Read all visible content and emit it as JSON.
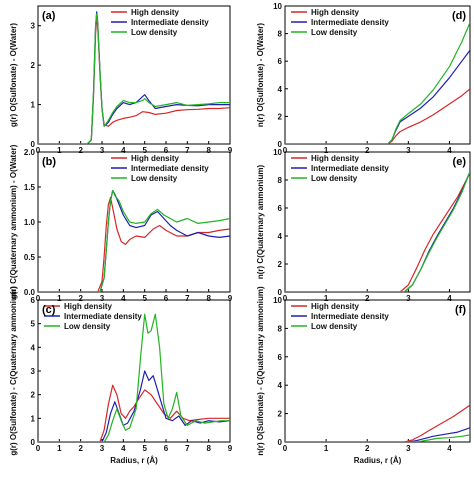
{
  "colors": {
    "high": "#d62728",
    "intermediate": "#1f1fb4",
    "low": "#22b422"
  },
  "legend": {
    "high": "High density",
    "intermediate": "Intermediate density",
    "low": "Low density"
  },
  "chart_data": [
    {
      "id": "a",
      "panel_label": "(a)",
      "type": "line",
      "ylabel": "g(r) O(Sulfonate) - O(Water)",
      "xlabel": "",
      "xlim": [
        0,
        9
      ],
      "ylim": [
        0,
        3.5
      ],
      "xticks": [
        "0",
        "1",
        "2",
        "3",
        "4",
        "5",
        "6",
        "7",
        "8",
        "9"
      ],
      "yticks": [
        "0",
        "1",
        "2",
        "3"
      ],
      "legend_position": "top-right",
      "series": [
        {
          "name": "High density",
          "key": "high",
          "x": [
            0,
            2.3,
            2.5,
            2.6,
            2.7,
            2.75,
            2.8,
            2.9,
            3.0,
            3.1,
            3.3,
            3.5,
            3.7,
            4.0,
            4.3,
            4.6,
            4.9,
            5.2,
            5.5,
            6.0,
            6.5,
            7.0,
            7.5,
            8.0,
            8.5,
            9.0
          ],
          "y": [
            0,
            0,
            0.1,
            1.2,
            2.8,
            3.2,
            3.0,
            1.8,
            0.9,
            0.5,
            0.45,
            0.55,
            0.6,
            0.65,
            0.68,
            0.72,
            0.82,
            0.8,
            0.75,
            0.78,
            0.85,
            0.87,
            0.88,
            0.9,
            0.9,
            0.92
          ]
        },
        {
          "name": "Intermediate density",
          "key": "intermediate",
          "x": [
            0,
            2.3,
            2.5,
            2.6,
            2.7,
            2.75,
            2.8,
            2.9,
            3.0,
            3.1,
            3.3,
            3.5,
            3.7,
            4.0,
            4.3,
            4.6,
            4.9,
            5.0,
            5.2,
            5.5,
            6.0,
            6.5,
            7.0,
            7.5,
            8.0,
            8.5,
            9.0
          ],
          "y": [
            0,
            0,
            0.1,
            1.3,
            3.0,
            3.35,
            3.1,
            1.9,
            0.9,
            0.45,
            0.55,
            0.75,
            0.9,
            1.05,
            1.0,
            1.05,
            1.2,
            1.25,
            1.1,
            0.9,
            0.95,
            1.0,
            0.98,
            0.97,
            1.0,
            1.0,
            1.0
          ]
        },
        {
          "name": "Low density",
          "key": "low",
          "x": [
            0,
            2.3,
            2.5,
            2.6,
            2.7,
            2.75,
            2.8,
            2.9,
            3.0,
            3.1,
            3.3,
            3.5,
            3.7,
            4.0,
            4.3,
            4.6,
            4.9,
            5.0,
            5.2,
            5.5,
            6.0,
            6.5,
            7.0,
            7.5,
            8.0,
            8.5,
            9.0
          ],
          "y": [
            0,
            0,
            0.1,
            1.3,
            3.0,
            3.3,
            3.05,
            1.9,
            0.9,
            0.45,
            0.6,
            0.8,
            0.95,
            1.1,
            1.05,
            1.05,
            1.1,
            1.15,
            1.05,
            0.95,
            1.0,
            1.05,
            0.98,
            1.0,
            1.02,
            1.05,
            1.05
          ]
        }
      ]
    },
    {
      "id": "b",
      "panel_label": "(b)",
      "type": "line",
      "ylabel": "g(r) C(Quaternary ammonium) - O(Water)",
      "xlabel": "",
      "xlim": [
        0,
        9
      ],
      "ylim": [
        0,
        2.0
      ],
      "xticks": [
        "0",
        "1",
        "2",
        "3",
        "4",
        "5",
        "6",
        "7",
        "8",
        "9"
      ],
      "yticks": [
        "0.0",
        "0.5",
        "1.0",
        "1.5",
        "2.0"
      ],
      "legend_position": "top-right",
      "series": [
        {
          "name": "High density",
          "key": "high",
          "x": [
            0,
            2.8,
            3.0,
            3.1,
            3.2,
            3.3,
            3.4,
            3.5,
            3.7,
            3.9,
            4.1,
            4.3,
            4.6,
            5.0,
            5.4,
            5.7,
            6.0,
            6.5,
            7.0,
            7.5,
            8.0,
            8.5,
            9.0
          ],
          "y": [
            0,
            0,
            0.15,
            0.5,
            0.95,
            1.25,
            1.35,
            1.2,
            0.9,
            0.72,
            0.68,
            0.75,
            0.8,
            0.78,
            0.9,
            0.95,
            0.88,
            0.8,
            0.8,
            0.85,
            0.85,
            0.88,
            0.9
          ]
        },
        {
          "name": "Intermediate density",
          "key": "intermediate",
          "x": [
            0,
            2.9,
            3.1,
            3.2,
            3.3,
            3.4,
            3.5,
            3.6,
            3.8,
            4.0,
            4.3,
            4.6,
            5.0,
            5.3,
            5.6,
            5.9,
            6.2,
            6.5,
            7.0,
            7.5,
            8.0,
            8.5,
            9.0
          ],
          "y": [
            0,
            0,
            0.2,
            0.6,
            1.0,
            1.3,
            1.45,
            1.4,
            1.25,
            1.1,
            0.95,
            0.92,
            0.95,
            1.1,
            1.15,
            1.05,
            0.95,
            0.88,
            0.8,
            0.85,
            0.8,
            0.78,
            0.8
          ]
        },
        {
          "name": "Low density",
          "key": "low",
          "x": [
            0,
            2.9,
            3.1,
            3.2,
            3.3,
            3.4,
            3.5,
            3.6,
            3.8,
            4.0,
            4.3,
            4.6,
            5.0,
            5.3,
            5.6,
            5.9,
            6.2,
            6.5,
            7.0,
            7.5,
            8.0,
            8.5,
            9.0
          ],
          "y": [
            0,
            0,
            0.2,
            0.6,
            1.0,
            1.3,
            1.45,
            1.38,
            1.3,
            1.15,
            1.0,
            0.98,
            1.0,
            1.12,
            1.18,
            1.1,
            1.05,
            1.0,
            1.05,
            0.98,
            1.0,
            1.02,
            1.05
          ]
        }
      ]
    },
    {
      "id": "c",
      "panel_label": "(c)",
      "type": "line",
      "ylabel": "g(r) O(Sulfonate) - C(Quaternary ammonium)",
      "xlabel": "Radius, r (Å)",
      "xlim": [
        0,
        9
      ],
      "ylim": [
        0,
        6
      ],
      "xticks": [
        "0",
        "1",
        "2",
        "3",
        "4",
        "5",
        "6",
        "7",
        "8",
        "9"
      ],
      "yticks": [
        "0",
        "1",
        "2",
        "3",
        "4",
        "5",
        "6"
      ],
      "legend_position": "top-left",
      "series": [
        {
          "name": "High density",
          "key": "high",
          "x": [
            0,
            2.9,
            3.1,
            3.3,
            3.5,
            3.7,
            3.9,
            4.1,
            4.3,
            4.5,
            4.7,
            5.0,
            5.3,
            5.6,
            5.9,
            6.2,
            6.5,
            6.8,
            7.1,
            7.5,
            8.0,
            8.5,
            9.0
          ],
          "y": [
            0,
            0,
            0.5,
            1.6,
            2.4,
            2.0,
            1.2,
            1.0,
            1.3,
            1.5,
            1.8,
            2.2,
            2.0,
            1.6,
            1.2,
            1.0,
            1.3,
            1.0,
            0.9,
            0.95,
            1.0,
            1.0,
            1.0
          ]
        },
        {
          "name": "Intermediate density",
          "key": "intermediate",
          "x": [
            0,
            3.0,
            3.2,
            3.4,
            3.6,
            3.8,
            4.0,
            4.2,
            4.5,
            4.8,
            5.0,
            5.2,
            5.4,
            5.6,
            5.8,
            6.0,
            6.3,
            6.6,
            6.9,
            7.2,
            7.6,
            8.0,
            8.5,
            9.0
          ],
          "y": [
            0,
            0,
            0.4,
            1.2,
            1.7,
            1.2,
            0.7,
            0.8,
            1.3,
            2.2,
            3.0,
            2.6,
            2.8,
            2.2,
            1.6,
            1.0,
            0.9,
            1.1,
            0.7,
            0.9,
            0.8,
            0.9,
            0.85,
            0.9
          ]
        },
        {
          "name": "Low density",
          "key": "low",
          "x": [
            0,
            3.1,
            3.3,
            3.5,
            3.7,
            3.9,
            4.1,
            4.3,
            4.6,
            4.8,
            5.0,
            5.15,
            5.3,
            5.5,
            5.7,
            5.9,
            6.1,
            6.3,
            6.5,
            6.7,
            7.0,
            7.4,
            7.8,
            8.2,
            8.6,
            9.0
          ],
          "y": [
            0,
            0,
            0.3,
            0.9,
            1.4,
            0.9,
            0.5,
            0.6,
            1.4,
            3.5,
            5.4,
            4.6,
            4.7,
            5.4,
            4.0,
            1.6,
            1.0,
            1.4,
            2.1,
            1.1,
            0.7,
            0.9,
            0.8,
            0.85,
            0.9,
            0.9
          ]
        }
      ]
    },
    {
      "id": "d",
      "panel_label": "(d)",
      "type": "line",
      "ylabel": "n(r) O(Sulfonate) - O(Water)",
      "xlabel": "",
      "xlim": [
        0,
        4.5
      ],
      "ylim": [
        0,
        10
      ],
      "xticks": [
        "0",
        "1",
        "2",
        "3",
        "4"
      ],
      "yticks": [
        "0",
        "2",
        "4",
        "6",
        "8",
        "10"
      ],
      "legend_position": "top-left",
      "series": [
        {
          "name": "High density",
          "key": "high",
          "x": [
            0,
            2.5,
            2.6,
            2.7,
            2.8,
            3.0,
            3.3,
            3.6,
            4.0,
            4.3,
            4.5
          ],
          "y": [
            0,
            0,
            0.2,
            0.6,
            0.9,
            1.2,
            1.6,
            2.1,
            2.9,
            3.5,
            4.0
          ]
        },
        {
          "name": "Intermediate density",
          "key": "intermediate",
          "x": [
            0,
            2.5,
            2.6,
            2.7,
            2.8,
            3.0,
            3.3,
            3.6,
            4.0,
            4.3,
            4.5
          ],
          "y": [
            0,
            0,
            0.3,
            1.0,
            1.6,
            2.0,
            2.6,
            3.4,
            4.8,
            6.0,
            6.8
          ]
        },
        {
          "name": "Low density",
          "key": "low",
          "x": [
            0,
            2.5,
            2.6,
            2.7,
            2.8,
            3.0,
            3.3,
            3.6,
            4.0,
            4.3,
            4.5
          ],
          "y": [
            0,
            0,
            0.3,
            1.1,
            1.7,
            2.2,
            2.9,
            3.9,
            5.6,
            7.4,
            8.8
          ]
        }
      ]
    },
    {
      "id": "e",
      "panel_label": "(e)",
      "type": "line",
      "ylabel": "n(r) C(Quaternary ammonium)",
      "xlabel": "",
      "xlim": [
        0,
        4.5
      ],
      "ylim": [
        0,
        10
      ],
      "xticks": [
        "0",
        "1",
        "2",
        "3",
        "4"
      ],
      "yticks": [
        "0",
        "2",
        "4",
        "6",
        "8",
        "10"
      ],
      "legend_position": "top-left",
      "series": [
        {
          "name": "High density",
          "key": "high",
          "x": [
            0,
            2.8,
            3.0,
            3.2,
            3.4,
            3.6,
            3.8,
            4.0,
            4.2,
            4.5
          ],
          "y": [
            0,
            0,
            0.5,
            1.7,
            3.0,
            4.1,
            5.0,
            5.9,
            6.8,
            8.5
          ]
        },
        {
          "name": "Intermediate density",
          "key": "intermediate",
          "x": [
            0,
            2.9,
            3.1,
            3.3,
            3.5,
            3.7,
            3.9,
            4.1,
            4.3,
            4.5
          ],
          "y": [
            0,
            0,
            0.5,
            1.6,
            2.9,
            4.0,
            5.0,
            6.0,
            7.2,
            8.6
          ]
        },
        {
          "name": "Low density",
          "key": "low",
          "x": [
            0,
            2.9,
            3.1,
            3.3,
            3.5,
            3.7,
            3.9,
            4.1,
            4.3,
            4.5
          ],
          "y": [
            0,
            0,
            0.5,
            1.6,
            2.8,
            3.9,
            4.9,
            5.9,
            7.1,
            8.6
          ]
        }
      ]
    },
    {
      "id": "f",
      "panel_label": "(f)",
      "type": "line",
      "ylabel": "n(r) O(Sulfonate) - C(Quaternary ammonium)",
      "xlabel": "Radius, r (Å)",
      "xlim": [
        0,
        4.5
      ],
      "ylim": [
        0,
        10
      ],
      "xticks": [
        "0",
        "1",
        "2",
        "3",
        "4"
      ],
      "yticks": [
        "0",
        "2",
        "4",
        "6",
        "8",
        "10"
      ],
      "legend_position": "top-left",
      "series": [
        {
          "name": "High density",
          "key": "high",
          "x": [
            0,
            2.9,
            3.1,
            3.3,
            3.5,
            3.8,
            4.1,
            4.5
          ],
          "y": [
            0,
            0,
            0.15,
            0.45,
            0.8,
            1.3,
            1.8,
            2.6
          ]
        },
        {
          "name": "Intermediate density",
          "key": "intermediate",
          "x": [
            0,
            3.0,
            3.2,
            3.4,
            3.6,
            3.9,
            4.2,
            4.5
          ],
          "y": [
            0,
            0,
            0.1,
            0.25,
            0.4,
            0.55,
            0.7,
            1.0
          ]
        },
        {
          "name": "Low density",
          "key": "low",
          "x": [
            0,
            3.1,
            3.3,
            3.5,
            3.7,
            4.0,
            4.3,
            4.5
          ],
          "y": [
            0,
            0,
            0.05,
            0.15,
            0.25,
            0.3,
            0.4,
            0.5
          ]
        }
      ]
    }
  ]
}
